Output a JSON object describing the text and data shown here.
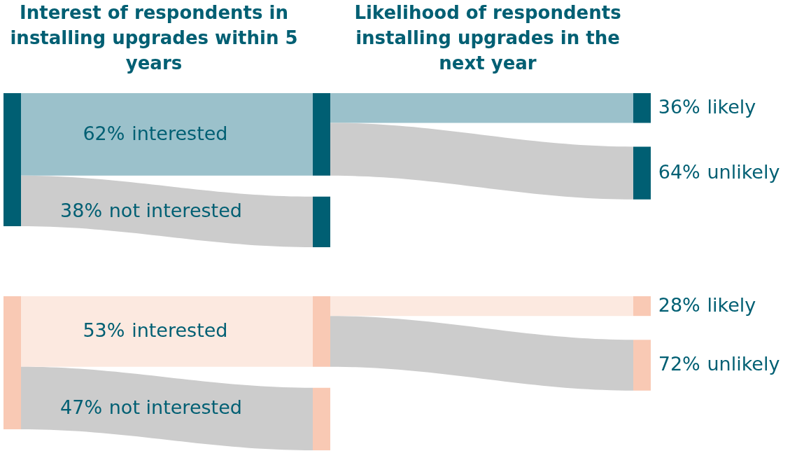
{
  "chart_data": {
    "type": "other",
    "annotations": [
      "Interest of respondents in installing upgrades within 5 years",
      "Likelihood of respondents installing upgrades in the next year"
    ],
    "categories": [
      "interested",
      "not interested",
      "likely",
      "unlikely"
    ],
    "series": [
      {
        "color": "#005f73",
        "colors": [
          "#9bc1cb",
          "#cccccc",
          "#9bc1cb",
          "#cccccc"
        ],
        "values": [
          62,
          38,
          36,
          64
        ],
        "value_labels": [
          "62%",
          "38%",
          "36%",
          "64%"
        ]
      },
      {
        "color": "#f9c9b4",
        "colors": [
          "#fce9e0",
          "#cccccc",
          "#fce9e0",
          "#cccccc"
        ],
        "values": [
          53,
          47,
          28,
          72
        ],
        "value_labels": [
          "53%",
          "47%",
          "28%",
          "72%"
        ]
      }
    ]
  }
}
